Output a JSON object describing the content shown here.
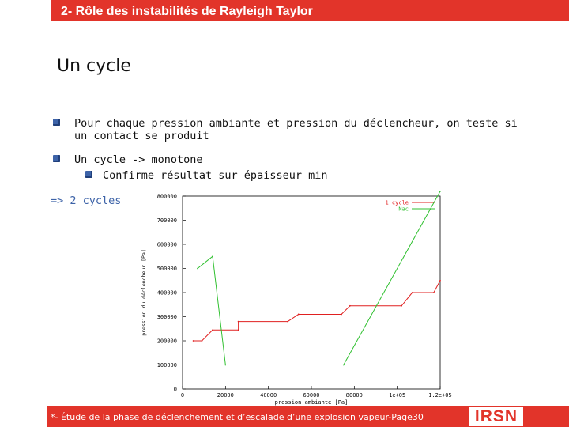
{
  "header": {
    "title": "2- Rôle des instabilités de Rayleigh Taylor"
  },
  "slide": {
    "subtitle": "Un cycle",
    "bullets": [
      {
        "line1": "Pour chaque pression ambiante et pression du déclencheur, on teste si",
        "line2": "un contact se produit"
      },
      {
        "line1": "Un cycle -> monotone",
        "sub": "Confirme résultat sur épaisseur min"
      }
    ],
    "conclusion": "=> 2 cycles"
  },
  "colors": {
    "accent": "#e2342a",
    "bullet": "#3d63a8",
    "series_1": "#e02020",
    "series_2": "#30c030"
  },
  "chart_data": {
    "type": "line",
    "xlabel": "pression ambiante [Pa]",
    "ylabel": "pression du déclencheur [Pa]",
    "xlim": [
      0,
      120000
    ],
    "ylim": [
      0,
      800000
    ],
    "x_tick_labels": [
      "0",
      "20000",
      "40000",
      "60000",
      "80000",
      "1e+05",
      "1.2e+05"
    ],
    "y_tick_labels": [
      "0",
      "100000",
      "200000",
      "300000",
      "400000",
      "500000",
      "600000",
      "700000",
      "800000"
    ],
    "grid": false,
    "legend": "top-right",
    "series": [
      {
        "name": "1 cycle",
        "color": "#e02020",
        "x": [
          5000,
          9000,
          14000,
          26000,
          26000,
          49000,
          54000,
          74000,
          78000,
          102000,
          107000,
          117000,
          120000
        ],
        "y": [
          200000,
          200000,
          245000,
          245000,
          280000,
          280000,
          310000,
          310000,
          345000,
          345000,
          400000,
          400000,
          450000
        ]
      },
      {
        "name": "Nac",
        "color": "#30c030",
        "x": [
          7000,
          14000,
          20000,
          75000,
          120000
        ],
        "y": [
          500000,
          550000,
          100000,
          100000,
          820000
        ]
      }
    ]
  },
  "footer": {
    "text": "*- Étude de la phase de déclenchement et d’escalade d’une explosion vapeur-Page30",
    "logo": "IRSN"
  }
}
